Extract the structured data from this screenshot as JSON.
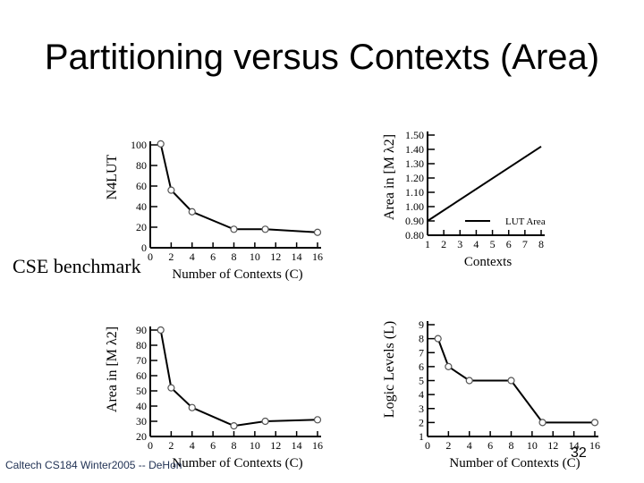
{
  "slide": {
    "title": "Partitioning versus Contexts (Area)",
    "side_label": "CSE benchmark",
    "footer": "Caltech CS184 Winter2005 -- DeHon",
    "slide_number": "32"
  },
  "chart_data": [
    {
      "type": "line",
      "ylabel": "N4LUT",
      "xlabel": "Number of Contexts (C)",
      "ylim": [
        0,
        100
      ],
      "yticks": [
        0,
        20,
        40,
        60,
        80,
        100
      ],
      "xlim": [
        0,
        16
      ],
      "xticks": [
        0,
        2,
        4,
        6,
        8,
        10,
        12,
        14,
        16
      ],
      "x": [
        1,
        2,
        4,
        8,
        11,
        16
      ],
      "y": [
        101,
        56,
        35,
        18,
        18,
        15
      ]
    },
    {
      "type": "line",
      "ylabel": "Area in [M λ2]",
      "xlabel": "Contexts",
      "ylim": [
        0.8,
        1.5
      ],
      "yticks": [
        "0.80",
        "0.90",
        "1.00",
        "1.10",
        "1.20",
        "1.30",
        "1.40",
        "1.50"
      ],
      "xlim": [
        1,
        8
      ],
      "xticks": [
        1,
        2,
        3,
        4,
        5,
        6,
        7,
        8
      ],
      "legend": "LUT Area",
      "series": [
        {
          "name": "LUT Area",
          "x": [
            1,
            8
          ],
          "y": [
            0.9,
            1.42
          ]
        }
      ]
    },
    {
      "type": "line",
      "ylabel": "Area in [M λ2]",
      "xlabel": "Number of Contexts (C)",
      "ylim": [
        20,
        90
      ],
      "yticks": [
        20,
        30,
        40,
        50,
        60,
        70,
        80,
        90
      ],
      "xlim": [
        0,
        16
      ],
      "xticks": [
        0,
        2,
        4,
        6,
        8,
        10,
        12,
        14,
        16
      ],
      "x": [
        1,
        2,
        4,
        8,
        11,
        16
      ],
      "y": [
        90,
        52,
        39,
        27,
        30,
        31
      ]
    },
    {
      "type": "line",
      "ylabel": "Logic Levels (L)",
      "xlabel": "Number of Contexts (C)",
      "ylim": [
        1,
        9
      ],
      "yticks": [
        1,
        2,
        3,
        4,
        5,
        6,
        7,
        8,
        9
      ],
      "xlim": [
        0,
        16
      ],
      "xticks": [
        0,
        2,
        4,
        6,
        8,
        10,
        12,
        14,
        16
      ],
      "x": [
        1,
        2,
        4,
        8,
        11,
        16
      ],
      "y": [
        8,
        6,
        5,
        5,
        2,
        2
      ]
    }
  ]
}
